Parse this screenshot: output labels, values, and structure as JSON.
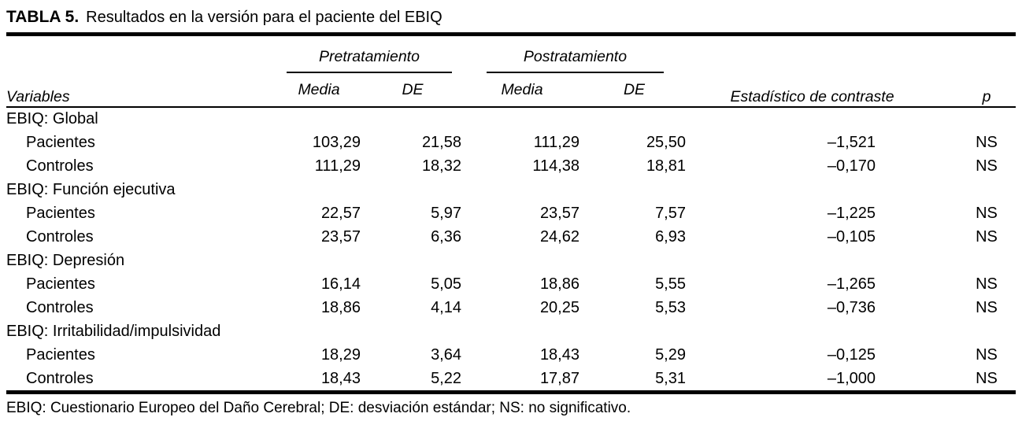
{
  "caption": {
    "label": "TABLA 5.",
    "text": "Resultados en la versión para el paciente del EBIQ"
  },
  "table": {
    "col_variables": "Variables",
    "groups": {
      "pre": {
        "label": "Pretratamiento",
        "media": "Media",
        "de": "DE"
      },
      "post": {
        "label": "Postratamiento",
        "media": "Media",
        "de": "DE"
      }
    },
    "col_statistic": "Estadístico de contraste",
    "col_p": "p",
    "sections": [
      {
        "name": "EBIQ: Global",
        "rows": [
          {
            "label": "Pacientes",
            "values": [
              "103,29",
              "21,58",
              "111,29",
              "25,50",
              "–1,521",
              "NS"
            ]
          },
          {
            "label": "Controles",
            "values": [
              "111,29",
              "18,32",
              "114,38",
              "18,81",
              "–0,170",
              "NS"
            ]
          }
        ]
      },
      {
        "name": "EBIQ: Función ejecutiva",
        "rows": [
          {
            "label": "Pacientes",
            "values": [
              "22,57",
              "5,97",
              "23,57",
              "7,57",
              "–1,225",
              "NS"
            ]
          },
          {
            "label": "Controles",
            "values": [
              "23,57",
              "6,36",
              "24,62",
              "6,93",
              "–0,105",
              "NS"
            ]
          }
        ]
      },
      {
        "name": "EBIQ: Depresión",
        "rows": [
          {
            "label": "Pacientes",
            "values": [
              "16,14",
              "5,05",
              "18,86",
              "5,55",
              "–1,265",
              "NS"
            ]
          },
          {
            "label": "Controles",
            "values": [
              "18,86",
              "4,14",
              "20,25",
              "5,53",
              "–0,736",
              "NS"
            ]
          }
        ]
      },
      {
        "name": "EBIQ: Irritabilidad/impulsividad",
        "rows": [
          {
            "label": "Pacientes",
            "values": [
              "18,29",
              "3,64",
              "18,43",
              "5,29",
              "–0,125",
              "NS"
            ]
          },
          {
            "label": "Controles",
            "values": [
              "18,43",
              "5,22",
              "17,87",
              "5,31",
              "–1,000",
              "NS"
            ]
          }
        ]
      }
    ]
  },
  "footnote": "EBIQ: Cuestionario Europeo del Daño Cerebral; DE: desviación estándar; NS: no significativo.",
  "colors": {
    "text": "#000000",
    "background": "#ffffff",
    "rule": "#000000"
  }
}
